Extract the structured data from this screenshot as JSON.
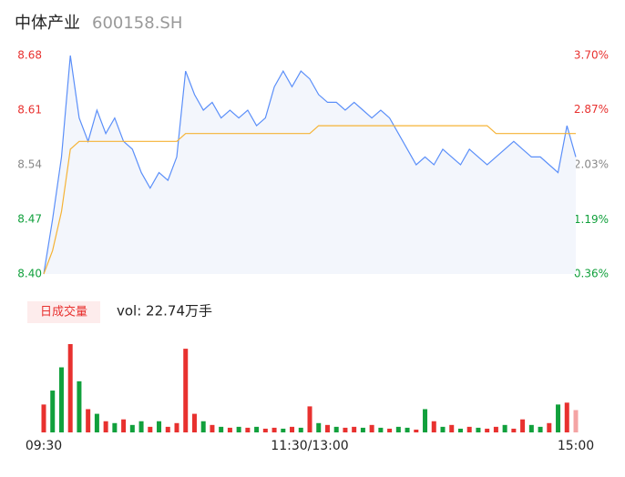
{
  "chart_data": {
    "type": "intraday",
    "title": "中体产业",
    "subtitle": "600158.SH",
    "volume_label": "日成交量",
    "volume_text": "vol: 22.74万手",
    "categories": [
      "09:30",
      null,
      null,
      null,
      null,
      null,
      null,
      null,
      null,
      null,
      null,
      null,
      null,
      null,
      null,
      null,
      null,
      null,
      null,
      null,
      null,
      null,
      null,
      null,
      null,
      null,
      null,
      null,
      null,
      null,
      "11:30/13:00",
      null,
      null,
      null,
      null,
      null,
      null,
      null,
      null,
      null,
      null,
      null,
      null,
      null,
      null,
      null,
      null,
      null,
      null,
      null,
      null,
      null,
      null,
      null,
      null,
      null,
      null,
      null,
      null,
      null,
      "15:00"
    ],
    "series": [
      {
        "color": "#5b8ff9",
        "values": [
          8.4,
          8.47,
          8.55,
          8.68,
          8.6,
          8.57,
          8.61,
          8.58,
          8.6,
          8.57,
          8.56,
          8.53,
          8.51,
          8.53,
          8.52,
          8.55,
          8.66,
          8.63,
          8.61,
          8.62,
          8.6,
          8.61,
          8.6,
          8.61,
          8.59,
          8.6,
          8.64,
          8.66,
          8.64,
          8.66,
          8.65,
          8.63,
          8.62,
          8.62,
          8.61,
          8.62,
          8.61,
          8.6,
          8.61,
          8.6,
          8.58,
          8.56,
          8.54,
          8.55,
          8.54,
          8.56,
          8.55,
          8.54,
          8.56,
          8.55,
          8.54,
          8.55,
          8.56,
          8.57,
          8.56,
          8.55,
          8.55,
          8.54,
          8.53,
          8.59,
          8.55
        ]
      },
      {
        "color": "#f5b335",
        "values": [
          8.4,
          8.43,
          8.48,
          8.56,
          8.57,
          8.57,
          8.57,
          8.57,
          8.57,
          8.57,
          8.57,
          8.57,
          8.57,
          8.57,
          8.57,
          8.57,
          8.58,
          8.58,
          8.58,
          8.58,
          8.58,
          8.58,
          8.58,
          8.58,
          8.58,
          8.58,
          8.58,
          8.58,
          8.58,
          8.58,
          8.58,
          8.59,
          8.59,
          8.59,
          8.59,
          8.59,
          8.59,
          8.59,
          8.59,
          8.59,
          8.59,
          8.59,
          8.59,
          8.59,
          8.59,
          8.59,
          8.59,
          8.59,
          8.59,
          8.59,
          8.59,
          8.58,
          8.58,
          8.58,
          8.58,
          8.58,
          8.58,
          8.58,
          8.58,
          8.58,
          8.58
        ]
      }
    ],
    "ylim": [
      8.4,
      8.68
    ],
    "yticks": [
      {
        "value": 8.4,
        "label": "8.40"
      },
      {
        "value": 8.47,
        "label": "8.47"
      },
      {
        "value": 8.54,
        "label": "8.54"
      },
      {
        "value": 8.61,
        "label": "8.61"
      },
      {
        "value": 8.68,
        "label": "8.68"
      }
    ],
    "y2lim": [
      0.36,
      3.7
    ],
    "y2ticks": [
      {
        "value": 0.36,
        "label": "0.36%"
      },
      {
        "value": 1.19,
        "label": "1.19%"
      },
      {
        "value": 2.03,
        "label": "2.03%"
      },
      {
        "value": 2.87,
        "label": "2.87%"
      },
      {
        "value": 3.7,
        "label": "3.70%"
      }
    ],
    "tick_colors": [
      "#11a03c",
      "#11a03c",
      "#888888",
      "#e8312f",
      "#e8312f"
    ],
    "volume": {
      "values": [
        30,
        45,
        70,
        95,
        55,
        25,
        20,
        12,
        10,
        14,
        8,
        12,
        6,
        12,
        6,
        10,
        90,
        20,
        12,
        8,
        6,
        5,
        6,
        5,
        6,
        4,
        5,
        4,
        6,
        5,
        28,
        10,
        8,
        6,
        5,
        6,
        5,
        8,
        5,
        4,
        6,
        5,
        3,
        25,
        12,
        6,
        8,
        4,
        6,
        5,
        4,
        6,
        8,
        4,
        14,
        8,
        6,
        10,
        30,
        32,
        24
      ],
      "colors": [
        "#e8312f",
        "#11a03c",
        "#11a03c",
        "#e8312f",
        "#11a03c",
        "#e8312f",
        "#11a03c",
        "#e8312f",
        "#11a03c",
        "#e8312f",
        "#11a03c",
        "#11a03c",
        "#e8312f",
        "#11a03c",
        "#e8312f",
        "#e8312f",
        "#e8312f",
        "#e8312f",
        "#11a03c",
        "#e8312f",
        "#11a03c",
        "#e8312f",
        "#11a03c",
        "#e8312f",
        "#11a03c",
        "#e8312f",
        "#e8312f",
        "#11a03c",
        "#e8312f",
        "#11a03c",
        "#e8312f",
        "#11a03c",
        "#e8312f",
        "#11a03c",
        "#e8312f",
        "#e8312f",
        "#11a03c",
        "#e8312f",
        "#11a03c",
        "#e8312f",
        "#11a03c",
        "#11a03c",
        "#e8312f",
        "#11a03c",
        "#e8312f",
        "#11a03c",
        "#e8312f",
        "#11a03c",
        "#e8312f",
        "#11a03c",
        "#e8312f",
        "#e8312f",
        "#11a03c",
        "#e8312f",
        "#e8312f",
        "#11a03c",
        "#11a03c",
        "#e8312f",
        "#11a03c",
        "#e8312f",
        "#f4a4a4"
      ]
    }
  }
}
